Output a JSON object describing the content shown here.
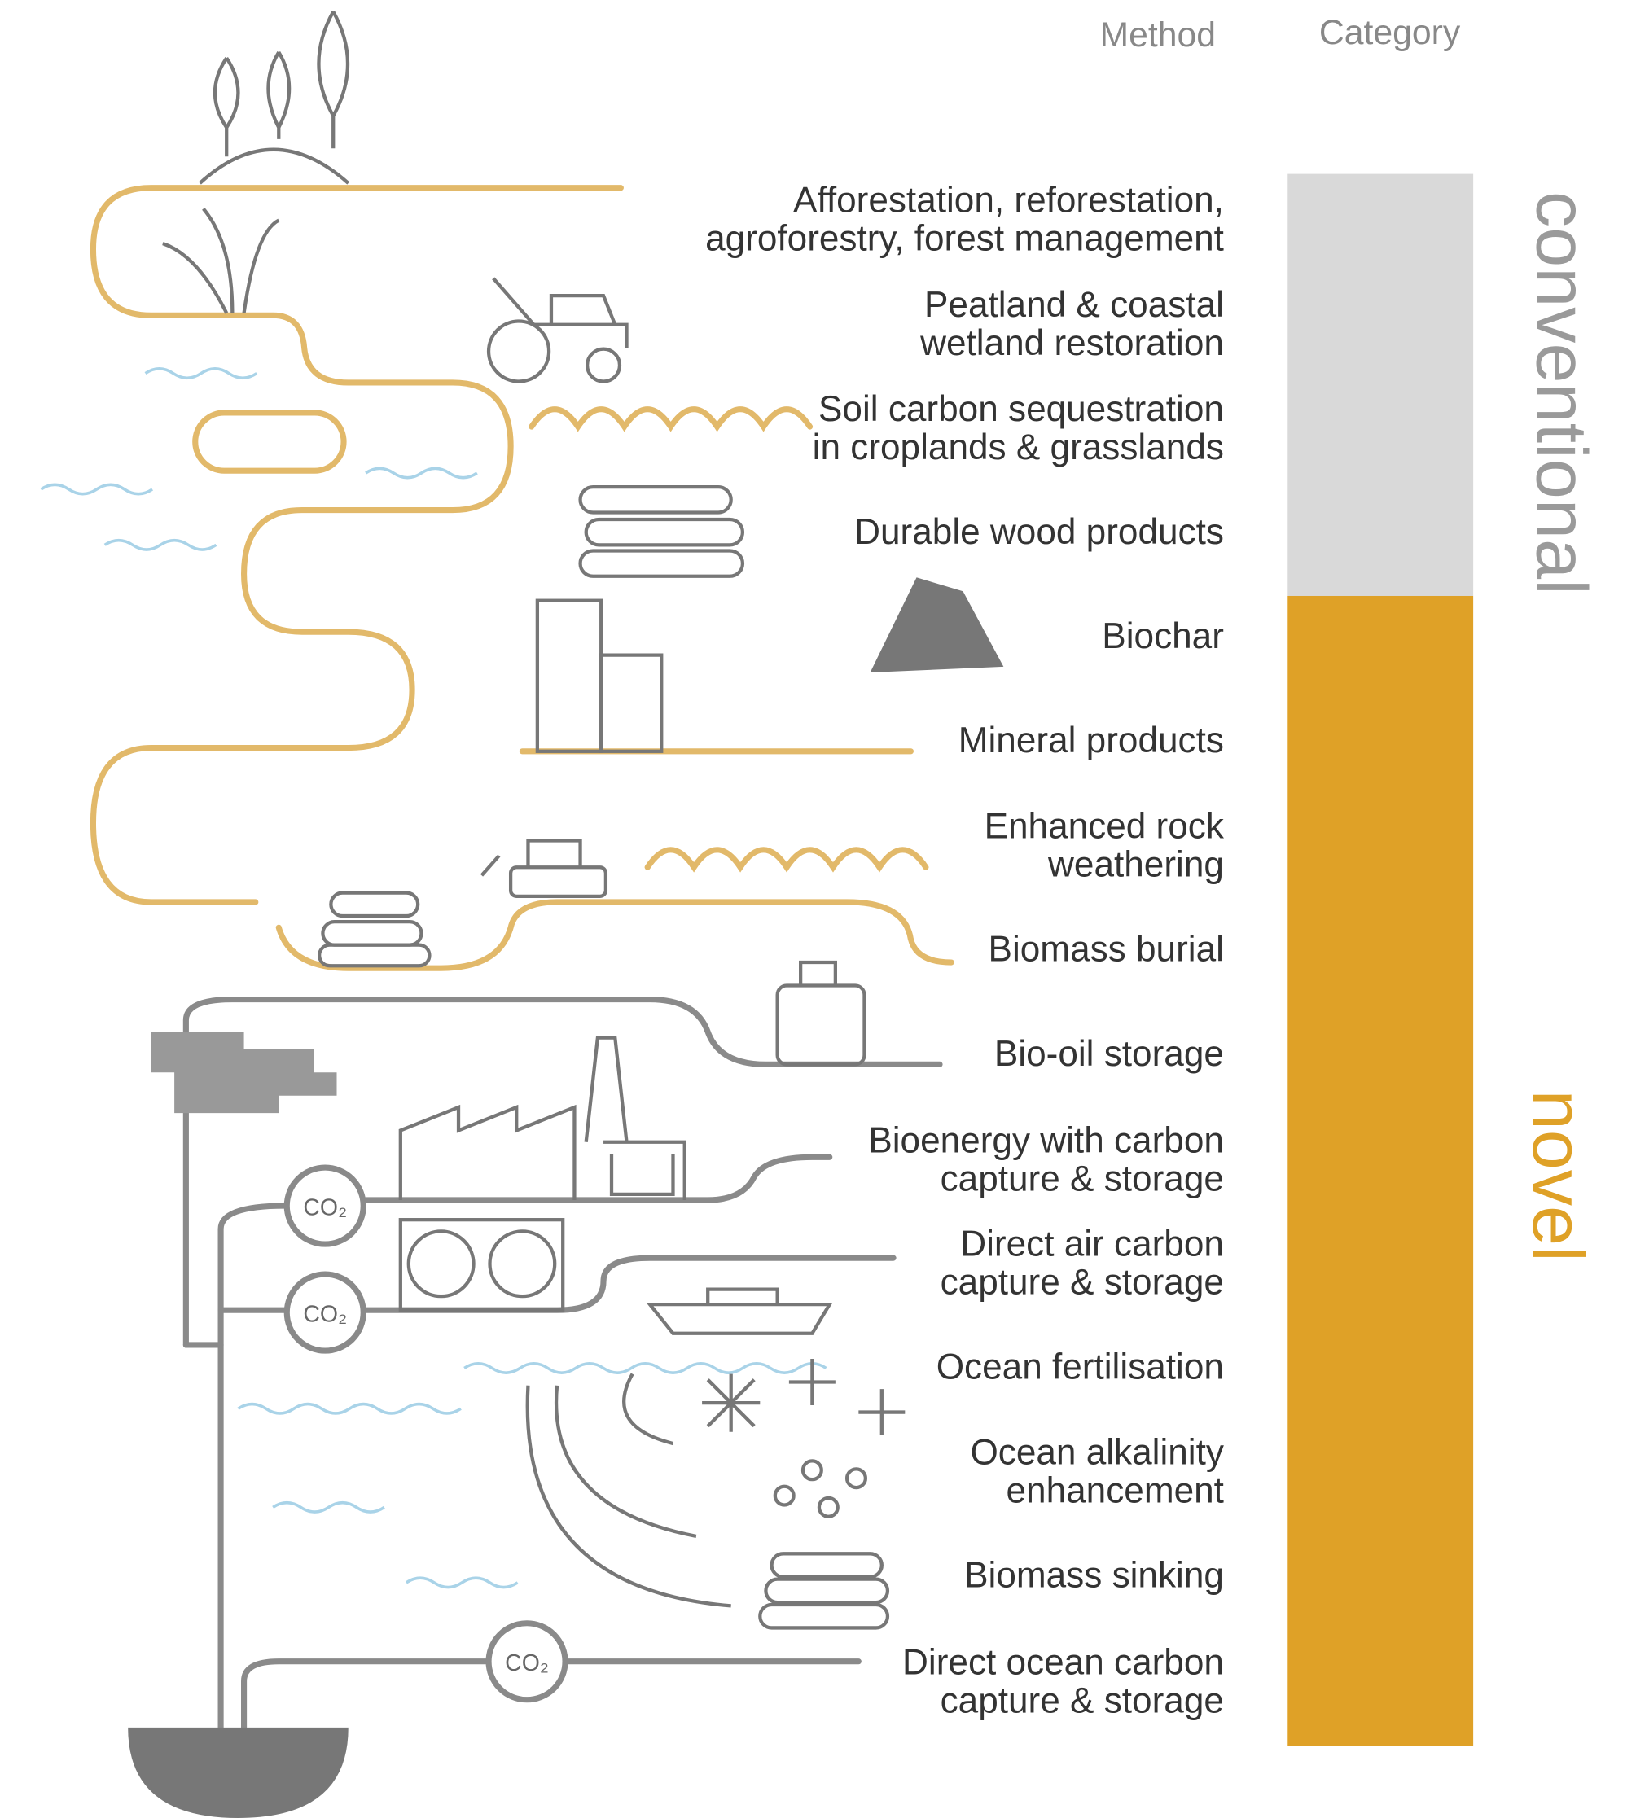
{
  "header": {
    "method": "Method",
    "category": "Category"
  },
  "methods": [
    {
      "lines": [
        "Afforestation, reforestation,",
        "agroforestry, forest management"
      ]
    },
    {
      "lines": [
        "Peatland & coastal",
        "wetland restoration"
      ]
    },
    {
      "lines": [
        "Soil carbon sequestration",
        "in croplands & grasslands"
      ]
    },
    {
      "lines": [
        "Durable wood products"
      ]
    },
    {
      "lines": [
        "Biochar"
      ]
    },
    {
      "lines": [
        "Mineral products"
      ]
    },
    {
      "lines": [
        "Enhanced rock",
        "weathering"
      ]
    },
    {
      "lines": [
        "Biomass burial"
      ]
    },
    {
      "lines": [
        "Bio-oil storage"
      ]
    },
    {
      "lines": [
        "Bioenergy with carbon",
        "capture & storage"
      ]
    },
    {
      "lines": [
        "Direct air carbon",
        "capture & storage"
      ]
    },
    {
      "lines": [
        "Ocean fertilisation"
      ]
    },
    {
      "lines": [
        "Ocean alkalinity",
        "enhancement"
      ]
    },
    {
      "lines": [
        "Biomass sinking"
      ]
    },
    {
      "lines": [
        "Direct ocean carbon",
        "capture & storage"
      ]
    }
  ],
  "categories": {
    "conventional": "conventional",
    "novel": "novel"
  },
  "co2_labels": [
    "CO₂",
    "CO₂",
    "CO₂"
  ]
}
